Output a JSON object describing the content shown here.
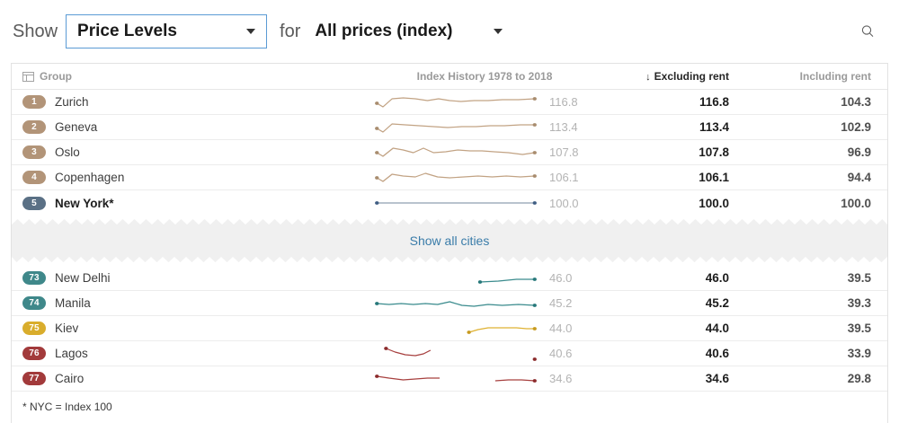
{
  "topbar": {
    "show_label": "Show",
    "metric_value": "Price Levels",
    "for_label": "for",
    "category_value": "All prices (index)"
  },
  "colors": {
    "dropdown_border": "#5b9bd5",
    "link": "#3a7ca9",
    "band_background": "#f0f0f0"
  },
  "table": {
    "headers": {
      "group": "Group",
      "history": "Index History 1978 to 2018",
      "excluding": "Excluding rent",
      "including": "Including rent",
      "sort_icon": "down-arrow"
    },
    "show_all_label": "Show all cities",
    "footnote": "* NYC = Index 100",
    "top_rows": [
      {
        "rank": "1",
        "city": "Zurich",
        "history_value": "116.8",
        "excluding": "116.8",
        "including": "104.3",
        "bold": false,
        "badge_color": "#b29478",
        "spark": {
          "line": "#c2a384",
          "dot": "#a88c6e",
          "segments": [
            [
              [
                2,
                12
              ],
              [
                8,
                16
              ],
              [
                17,
                7
              ],
              [
                28,
                6
              ],
              [
                40,
                7
              ],
              [
                52,
                9
              ],
              [
                63,
                7
              ],
              [
                74,
                9
              ],
              [
                85,
                10
              ],
              [
                98,
                9
              ],
              [
                112,
                9
              ],
              [
                126,
                8
              ],
              [
                142,
                8
              ],
              [
                158,
                7
              ]
            ]
          ],
          "dots": [
            [
              2,
              12
            ],
            [
              158,
              7
            ]
          ]
        }
      },
      {
        "rank": "2",
        "city": "Geneva",
        "history_value": "113.4",
        "excluding": "113.4",
        "including": "102.9",
        "bold": false,
        "badge_color": "#b29478",
        "spark": {
          "line": "#c2a384",
          "dot": "#a88c6e",
          "segments": [
            [
              [
                2,
                12
              ],
              [
                8,
                16
              ],
              [
                17,
                7
              ],
              [
                30,
                8
              ],
              [
                44,
                9
              ],
              [
                58,
                10
              ],
              [
                72,
                11
              ],
              [
                86,
                10
              ],
              [
                100,
                10
              ],
              [
                114,
                9
              ],
              [
                128,
                9
              ],
              [
                144,
                8
              ],
              [
                158,
                8
              ]
            ]
          ],
          "dots": [
            [
              2,
              12
            ],
            [
              158,
              8
            ]
          ]
        }
      },
      {
        "rank": "3",
        "city": "Oslo",
        "history_value": "107.8",
        "excluding": "107.8",
        "including": "96.9",
        "bold": false,
        "badge_color": "#b29478",
        "spark": {
          "line": "#c2a384",
          "dot": "#a88c6e",
          "segments": [
            [
              [
                2,
                11
              ],
              [
                8,
                15
              ],
              [
                18,
                6
              ],
              [
                28,
                8
              ],
              [
                38,
                11
              ],
              [
                48,
                6
              ],
              [
                58,
                11
              ],
              [
                70,
                10
              ],
              [
                82,
                8
              ],
              [
                94,
                9
              ],
              [
                106,
                9
              ],
              [
                118,
                10
              ],
              [
                132,
                11
              ],
              [
                146,
                13
              ],
              [
                158,
                11
              ]
            ]
          ],
          "dots": [
            [
              2,
              11
            ],
            [
              158,
              11
            ]
          ]
        }
      },
      {
        "rank": "4",
        "city": "Copenhagen",
        "history_value": "106.1",
        "excluding": "106.1",
        "including": "94.4",
        "bold": false,
        "badge_color": "#b29478",
        "spark": {
          "line": "#c2a384",
          "dot": "#a88c6e",
          "segments": [
            [
              [
                2,
                11
              ],
              [
                8,
                15
              ],
              [
                17,
                7
              ],
              [
                28,
                9
              ],
              [
                40,
                10
              ],
              [
                50,
                6
              ],
              [
                62,
                10
              ],
              [
                74,
                11
              ],
              [
                88,
                10
              ],
              [
                102,
                9
              ],
              [
                116,
                10
              ],
              [
                130,
                9
              ],
              [
                144,
                10
              ],
              [
                158,
                9
              ]
            ]
          ],
          "dots": [
            [
              2,
              11
            ],
            [
              158,
              9
            ]
          ]
        }
      },
      {
        "rank": "5",
        "city": "New York*",
        "history_value": "100.0",
        "excluding": "100.0",
        "including": "100.0",
        "bold": true,
        "badge_color": "#5a7085",
        "spark": {
          "line": "#8f9fb1",
          "dot": "#3f5d83",
          "segments": [
            [
              [
                2,
                11
              ],
              [
                158,
                11
              ]
            ]
          ],
          "dots": [
            [
              2,
              11
            ],
            [
              158,
              11
            ]
          ]
        }
      }
    ],
    "bottom_rows": [
      {
        "rank": "73",
        "city": "New Delhi",
        "history_value": "46.0",
        "excluding": "46.0",
        "including": "39.5",
        "bold": false,
        "badge_color": "#3f888a",
        "spark": {
          "line": "#3a8b8d",
          "dot": "#27787a",
          "segments": [
            [
              [
                104,
                15
              ],
              [
                122,
                14
              ],
              [
                140,
                12
              ],
              [
                158,
                12
              ]
            ]
          ],
          "dots": [
            [
              104,
              15
            ],
            [
              158,
              12
            ]
          ]
        }
      },
      {
        "rank": "74",
        "city": "Manila",
        "history_value": "45.2",
        "excluding": "45.2",
        "including": "39.3",
        "bold": false,
        "badge_color": "#3f888a",
        "spark": {
          "line": "#3a8b8d",
          "dot": "#27787a",
          "segments": [
            [
              [
                2,
                11
              ],
              [
                14,
                12
              ],
              [
                26,
                11
              ],
              [
                38,
                12
              ],
              [
                50,
                11
              ],
              [
                62,
                12
              ],
              [
                74,
                9
              ],
              [
                86,
                13
              ],
              [
                98,
                14
              ],
              [
                112,
                12
              ],
              [
                126,
                13
              ],
              [
                142,
                12
              ],
              [
                158,
                13
              ]
            ]
          ],
          "dots": [
            [
              2,
              11
            ],
            [
              158,
              13
            ]
          ]
        }
      },
      {
        "rank": "75",
        "city": "Kiev",
        "history_value": "44.0",
        "excluding": "44.0",
        "including": "39.5",
        "bold": false,
        "badge_color": "#d9ad2c",
        "spark": {
          "line": "#dfb233",
          "dot": "#c79a1e",
          "segments": [
            [
              [
                93,
                15
              ],
              [
                102,
                12
              ],
              [
                112,
                10
              ],
              [
                126,
                10
              ],
              [
                140,
                10
              ],
              [
                150,
                11
              ],
              [
                158,
                11
              ]
            ]
          ],
          "dots": [
            [
              93,
              15
            ],
            [
              158,
              11
            ]
          ]
        }
      },
      {
        "rank": "76",
        "city": "Lagos",
        "history_value": "40.6",
        "excluding": "40.6",
        "including": "33.9",
        "bold": false,
        "badge_color": "#a23a3b",
        "spark": {
          "line": "#a7403f",
          "dot": "#8b2a2b",
          "segments": [
            [
              [
                11,
                5
              ],
              [
                20,
                9
              ],
              [
                30,
                12
              ],
              [
                40,
                13
              ],
              [
                48,
                11
              ],
              [
                55,
                7
              ]
            ]
          ],
          "dots": [
            [
              11,
              5
            ],
            [
              158,
              17
            ]
          ]
        }
      },
      {
        "rank": "77",
        "city": "Cairo",
        "history_value": "34.6",
        "excluding": "34.6",
        "including": "29.8",
        "bold": false,
        "badge_color": "#a23a3b",
        "spark": {
          "line": "#a7403f",
          "dot": "#8b2a2b",
          "segments": [
            [
              [
                2,
                8
              ],
              [
                14,
                10
              ],
              [
                28,
                12
              ],
              [
                40,
                11
              ],
              [
                52,
                10
              ],
              [
                64,
                10
              ]
            ],
            [
              [
                119,
                13
              ],
              [
                132,
                12
              ],
              [
                145,
                12
              ],
              [
                158,
                13
              ]
            ]
          ],
          "dots": [
            [
              2,
              8
            ],
            [
              158,
              13
            ]
          ]
        }
      }
    ]
  }
}
